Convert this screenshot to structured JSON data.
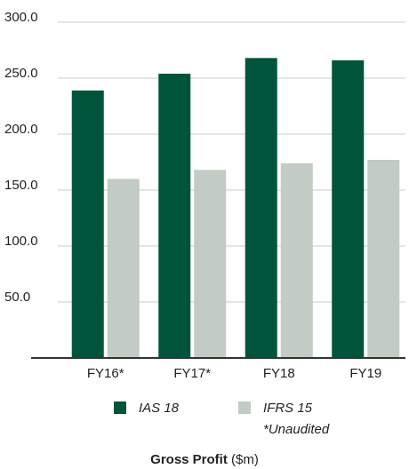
{
  "chart_data": {
    "type": "bar",
    "title": "Gross Profit",
    "title_unit": "($m)",
    "annotation": "*Unaudited",
    "categories": [
      "FY16*",
      "FY17*",
      "FY18",
      "FY19"
    ],
    "series": [
      {
        "name": "IAS 18",
        "color": "#00543c",
        "values": [
          239,
          254,
          268,
          266
        ]
      },
      {
        "name": "IFRS 15",
        "color": "#c2cbc4",
        "values": [
          160,
          168,
          174,
          177
        ]
      }
    ],
    "ylim": [
      0,
      300
    ],
    "yticks": [
      {
        "value": 50,
        "label": "50.0"
      },
      {
        "value": 100,
        "label": "100.0"
      },
      {
        "value": 150,
        "label": "150.0"
      },
      {
        "value": 200,
        "label": "200.0"
      },
      {
        "value": 250,
        "label": "250.0"
      },
      {
        "value": 300,
        "label": "300.0"
      }
    ],
    "grid": true
  }
}
